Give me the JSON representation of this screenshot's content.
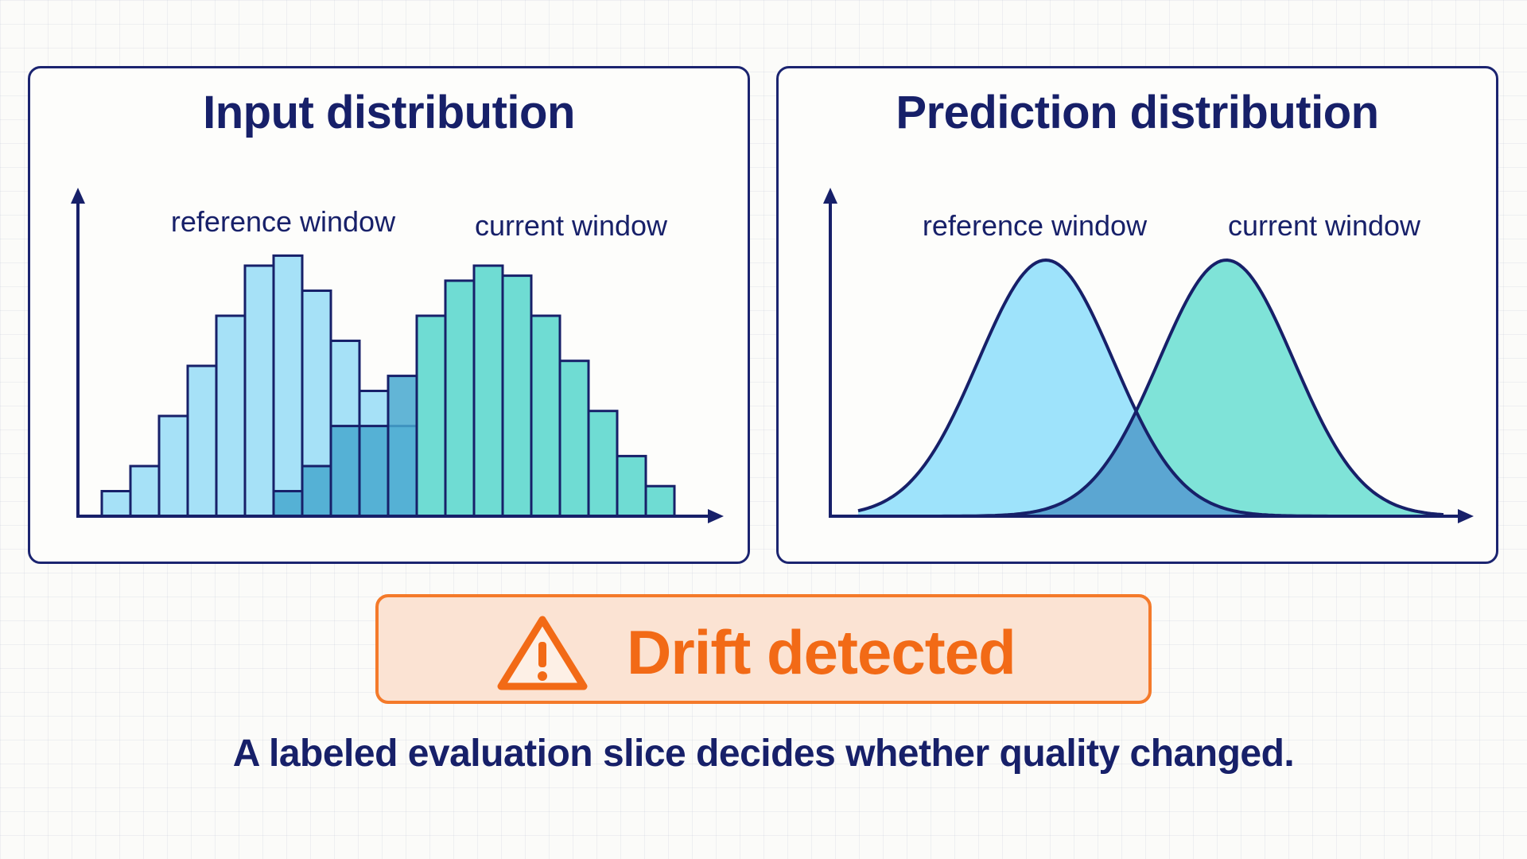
{
  "colors": {
    "navy": "#172069",
    "reference_fill": "#a6e1f7",
    "current_fill": "#6fdcd3",
    "overlap_fill": "#46a8cf",
    "curve_reference": "#9ee3fb",
    "curve_current": "#7fe3d8",
    "curve_overlap": "#5ba6d2",
    "alert": "#f26a16",
    "alert_background": "#fbe3d3"
  },
  "input_panel": {
    "title": "Input distribution",
    "reference_label": "reference window",
    "current_label": "current window"
  },
  "prediction_panel": {
    "title": "Prediction distribution",
    "reference_label": "reference window",
    "current_label": "current window"
  },
  "alert": {
    "text": "Drift detected",
    "icon": "warning-triangle-icon"
  },
  "caption": "A labeled evaluation slice decides whether quality changed.",
  "chart_data": [
    {
      "type": "bar",
      "title": "Input distribution",
      "series": [
        {
          "name": "reference window",
          "values": [
            1,
            2,
            4,
            6,
            8,
            10,
            10.4,
            9,
            7,
            5,
            3.6,
            0
          ]
        },
        {
          "name": "current window",
          "values": [
            0,
            0,
            0,
            0,
            0,
            0,
            1,
            2,
            3.6,
            3.6,
            5.6,
            8,
            9.4,
            10,
            9.6,
            8,
            6.2,
            4.2,
            2.4,
            1.2
          ]
        }
      ]
    },
    {
      "type": "area",
      "title": "Prediction distribution",
      "series": [
        {
          "name": "reference window"
        },
        {
          "name": "current window"
        }
      ]
    }
  ]
}
